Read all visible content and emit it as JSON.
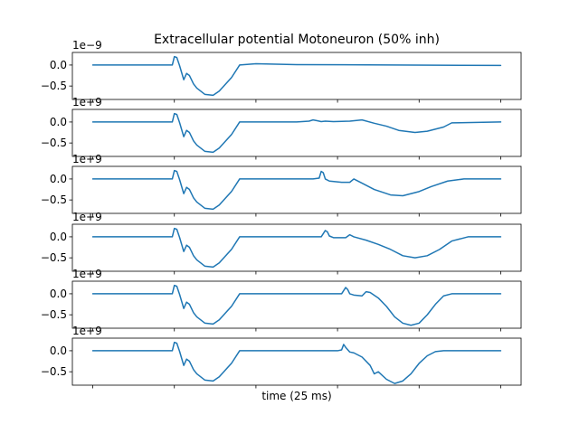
{
  "chart_data": {
    "type": "line",
    "title": "Extracellular potential Motoneuron (50% inh)",
    "xlabel": "time (25 ms)",
    "y_offset_label": "1e−9",
    "y_offset_label_alt": "1e+9",
    "y_ticks": [
      0.0,
      -0.5
    ],
    "y_tick_labels": [
      "0.0",
      "−0.5"
    ],
    "ylim": [
      -0.82,
      0.3
    ],
    "xlim": [
      -5,
      105
    ],
    "x_ticks_count": 6,
    "x_tick_labels_visible": false,
    "grid": false,
    "line_color": "#1f77b4",
    "panels": [
      {
        "x": [
          0,
          19.5,
          20,
          20.6,
          21.3,
          22.3,
          23,
          23.7,
          24.7,
          25.5,
          27.5,
          29.5,
          31,
          34,
          36,
          40,
          45,
          50,
          100
        ],
        "y": [
          0,
          0,
          0.2,
          0.18,
          -0.02,
          -0.35,
          -0.2,
          -0.25,
          -0.45,
          -0.55,
          -0.7,
          -0.72,
          -0.62,
          -0.3,
          0,
          0.03,
          0.02,
          0.01,
          -0.01
        ]
      },
      {
        "x": [
          0,
          19.5,
          20,
          20.6,
          21.3,
          22.3,
          23,
          23.7,
          24.7,
          25.5,
          27.5,
          29.5,
          31,
          34,
          36,
          50,
          53,
          54,
          55,
          56,
          57,
          59,
          63,
          66,
          69,
          72,
          75,
          79,
          82,
          86,
          88,
          100
        ],
        "y": [
          0,
          0,
          0.2,
          0.18,
          -0.02,
          -0.35,
          -0.2,
          -0.25,
          -0.45,
          -0.55,
          -0.7,
          -0.72,
          -0.62,
          -0.3,
          0,
          0,
          0.02,
          0.05,
          0.03,
          0.01,
          0.02,
          0.01,
          0.02,
          0.05,
          -0.03,
          -0.1,
          -0.2,
          -0.25,
          -0.22,
          -0.12,
          -0.02,
          0
        ]
      },
      {
        "x": [
          0,
          19.5,
          20,
          20.6,
          21.3,
          22.3,
          23,
          23.7,
          24.7,
          25.5,
          27.5,
          29.5,
          31,
          34,
          36,
          54,
          55.5,
          56,
          56.5,
          57,
          58,
          61,
          63,
          64,
          66,
          69,
          73,
          76,
          80,
          83,
          87,
          91,
          100
        ],
        "y": [
          0,
          0,
          0.2,
          0.18,
          -0.02,
          -0.35,
          -0.2,
          -0.25,
          -0.45,
          -0.55,
          -0.7,
          -0.72,
          -0.62,
          -0.3,
          0,
          0,
          0.02,
          0.18,
          0.15,
          0,
          -0.05,
          -0.08,
          -0.08,
          0,
          -0.1,
          -0.25,
          -0.38,
          -0.4,
          -0.3,
          -0.18,
          -0.05,
          0,
          0
        ]
      },
      {
        "x": [
          0,
          19.5,
          20,
          20.6,
          21.3,
          22.3,
          23,
          23.7,
          24.7,
          25.5,
          27.5,
          29.5,
          31,
          34,
          36,
          56,
          57,
          57.5,
          58,
          59,
          62,
          63,
          64,
          67,
          70,
          73,
          76,
          79,
          82,
          85,
          88,
          92,
          100
        ],
        "y": [
          0,
          0,
          0.2,
          0.18,
          -0.02,
          -0.35,
          -0.2,
          -0.25,
          -0.45,
          -0.55,
          -0.7,
          -0.72,
          -0.62,
          -0.3,
          0,
          0,
          0.15,
          0.12,
          0.02,
          -0.02,
          -0.02,
          0.05,
          0,
          -0.08,
          -0.18,
          -0.3,
          -0.45,
          -0.5,
          -0.45,
          -0.3,
          -0.1,
          0,
          0
        ]
      },
      {
        "x": [
          0,
          19.5,
          20,
          20.6,
          21.3,
          22.3,
          23,
          23.7,
          24.7,
          25.5,
          27.5,
          29.5,
          31,
          34,
          36,
          61,
          62,
          62.5,
          63,
          64,
          66,
          67,
          68,
          70,
          72,
          74,
          76,
          78,
          80,
          82,
          84,
          86,
          88,
          100
        ],
        "y": [
          0,
          0,
          0.2,
          0.18,
          -0.02,
          -0.35,
          -0.2,
          -0.25,
          -0.45,
          -0.55,
          -0.7,
          -0.72,
          -0.62,
          -0.3,
          0,
          0,
          0.15,
          0.1,
          0,
          -0.03,
          -0.05,
          0.05,
          0.03,
          -0.1,
          -0.3,
          -0.55,
          -0.7,
          -0.75,
          -0.7,
          -0.5,
          -0.25,
          -0.05,
          0,
          0
        ]
      },
      {
        "x": [
          0,
          19.5,
          20,
          20.6,
          21.3,
          22.3,
          23,
          23.7,
          24.7,
          25.5,
          27.5,
          29.5,
          31,
          34,
          36,
          60,
          61,
          61.5,
          62,
          63,
          64,
          66,
          68,
          69,
          70,
          72,
          74,
          76,
          78,
          80,
          82,
          84,
          86,
          100
        ],
        "y": [
          0,
          0,
          0.2,
          0.18,
          -0.02,
          -0.35,
          -0.2,
          -0.25,
          -0.45,
          -0.55,
          -0.7,
          -0.72,
          -0.62,
          -0.3,
          0,
          0,
          0.02,
          0.15,
          0.08,
          -0.03,
          -0.05,
          -0.15,
          -0.35,
          -0.55,
          -0.5,
          -0.68,
          -0.78,
          -0.72,
          -0.55,
          -0.3,
          -0.12,
          -0.02,
          0,
          0
        ]
      }
    ]
  }
}
